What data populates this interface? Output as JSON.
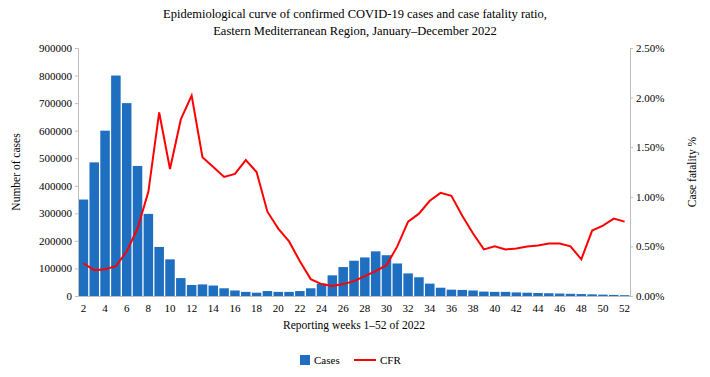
{
  "chart_data": {
    "type": "bar",
    "title": [
      "Epidemiological curve of confirmed COVID-19 cases and case fatality ratio,",
      "Eastern Mediterranean Region, January–December 2022"
    ],
    "x_label": "Reporting weeks 1–52 of 2022",
    "y_label": "Number of cases",
    "y2_label": "Case fatality %",
    "categories": [
      "2",
      null,
      "4",
      null,
      "6",
      null,
      "8",
      null,
      "10",
      null,
      "12",
      null,
      "14",
      null,
      "16",
      null,
      "18",
      null,
      "20",
      null,
      "22",
      null,
      "24",
      null,
      "26",
      null,
      "28",
      null,
      "30",
      null,
      "32",
      null,
      "34",
      null,
      "36",
      null,
      "38",
      null,
      "40",
      null,
      "42",
      null,
      "44",
      null,
      "46",
      null,
      "48",
      null,
      "50",
      null,
      "52"
    ],
    "series": [
      {
        "name": "Cases",
        "type": "bar",
        "color": "#1f6fc0",
        "values": [
          350000,
          485000,
          600000,
          800000,
          700000,
          472000,
          298000,
          178000,
          133000,
          65000,
          40000,
          42000,
          38000,
          28000,
          20000,
          15000,
          12000,
          18000,
          15000,
          15000,
          18000,
          28000,
          45000,
          75000,
          105000,
          128000,
          140000,
          162000,
          148000,
          118000,
          82000,
          68000,
          45000,
          30000,
          23000,
          22000,
          20000,
          16000,
          15000,
          15000,
          13000,
          12000,
          11000,
          10000,
          9000,
          8000,
          7000,
          6000,
          5000,
          4000,
          3000
        ]
      },
      {
        "name": "CFR",
        "type": "line",
        "axis": "y2",
        "color": "#ff0000",
        "values": [
          0.33,
          0.26,
          0.27,
          0.3,
          0.45,
          0.68,
          1.05,
          1.85,
          1.28,
          1.78,
          2.02,
          1.4,
          1.3,
          1.2,
          1.23,
          1.37,
          1.25,
          0.85,
          0.68,
          0.55,
          0.35,
          0.17,
          0.12,
          0.1,
          0.12,
          0.15,
          0.2,
          0.25,
          0.31,
          0.5,
          0.75,
          0.83,
          0.96,
          1.04,
          1.01,
          0.81,
          0.63,
          0.47,
          0.5,
          0.47,
          0.48,
          0.5,
          0.51,
          0.53,
          0.53,
          0.5,
          0.37,
          0.66,
          0.71,
          0.78,
          0.75
        ]
      }
    ],
    "ylim": [
      0,
      900000
    ],
    "yticks": [
      0,
      100000,
      200000,
      300000,
      400000,
      500000,
      600000,
      700000,
      800000,
      900000
    ],
    "y2lim": [
      0,
      2.5
    ],
    "y2ticks": [
      {
        "value": 0,
        "label": "0.00%"
      },
      {
        "value": 0.5,
        "label": "0.50%"
      },
      {
        "value": 1,
        "label": "1.00%"
      },
      {
        "value": 1.5,
        "label": "1.50%"
      },
      {
        "value": 2,
        "label": "2.00%"
      },
      {
        "value": 2.5,
        "label": "2.50%"
      }
    ],
    "grid": false,
    "legend": "bottom"
  }
}
